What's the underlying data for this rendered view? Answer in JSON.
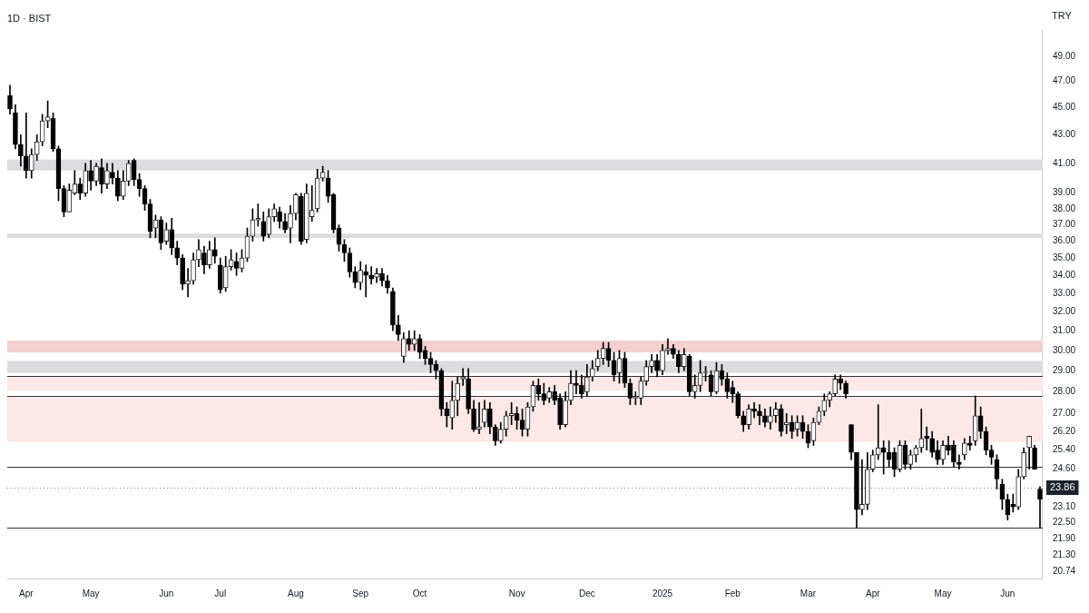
{
  "chart_data": {
    "type": "candlestick",
    "title": "1D · BIST",
    "annotations": [
      "TRY"
    ],
    "categories": [
      null,
      null,
      null,
      "Apr",
      null,
      null,
      null,
      null,
      null,
      null,
      null,
      null,
      null,
      null,
      null,
      "May",
      null,
      null,
      null,
      null,
      null,
      null,
      null,
      null,
      null,
      null,
      null,
      null,
      null,
      "Jun",
      null,
      null,
      null,
      null,
      null,
      null,
      null,
      null,
      null,
      "Jul",
      null,
      null,
      null,
      null,
      null,
      null,
      null,
      null,
      null,
      null,
      null,
      null,
      null,
      "Aug",
      null,
      null,
      null,
      null,
      null,
      null,
      null,
      null,
      null,
      null,
      null,
      "Sep",
      null,
      null,
      null,
      null,
      null,
      null,
      null,
      null,
      null,
      null,
      "Oct",
      null,
      null,
      null,
      null,
      null,
      null,
      null,
      null,
      null,
      null,
      null,
      null,
      null,
      null,
      null,
      null,
      null,
      "Nov",
      null,
      null,
      null,
      null,
      null,
      null,
      null,
      null,
      null,
      null,
      null,
      null,
      "Dec",
      null,
      null,
      null,
      null,
      null,
      null,
      null,
      null,
      null,
      null,
      null,
      null,
      null,
      "2025",
      null,
      null,
      null,
      null,
      null,
      null,
      null,
      null,
      null,
      null,
      null,
      null,
      "Feb",
      null,
      null,
      null,
      null,
      null,
      null,
      null,
      null,
      null,
      null,
      null,
      null,
      null,
      "Mar",
      null,
      null,
      null,
      null,
      null,
      null,
      null,
      null,
      null,
      null,
      null,
      "Apr",
      null,
      null,
      null,
      null,
      null,
      null,
      null,
      null,
      null,
      null,
      null,
      null,
      "May",
      null,
      null,
      null,
      null,
      null,
      null,
      null,
      null,
      null,
      null,
      null,
      "Jun",
      null,
      null,
      null,
      null,
      null,
      null
    ],
    "ohlc": [
      [
        45.9,
        46.7,
        44.5,
        44.9
      ],
      [
        44.6,
        45.2,
        42.0,
        42.3
      ],
      [
        42.3,
        43.0,
        40.8,
        41.5
      ],
      [
        41.5,
        44.6,
        40.0,
        40.5
      ],
      [
        40.5,
        42.0,
        40.0,
        41.6
      ],
      [
        41.6,
        43.0,
        41.2,
        42.5
      ],
      [
        42.5,
        44.5,
        42.2,
        44.0
      ],
      [
        44.0,
        45.5,
        43.5,
        44.3
      ],
      [
        44.2,
        44.6,
        41.8,
        42.0
      ],
      [
        42.0,
        42.2,
        38.5,
        39.3
      ],
      [
        39.3,
        39.5,
        37.5,
        37.8
      ],
      [
        37.8,
        39.6,
        37.8,
        39.2
      ],
      [
        39.0,
        40.5,
        38.9,
        39.6
      ],
      [
        39.6,
        40.0,
        38.6,
        39.0
      ],
      [
        39.0,
        41.0,
        38.8,
        40.5
      ],
      [
        40.5,
        41.2,
        39.2,
        39.8
      ],
      [
        39.8,
        41.0,
        39.5,
        40.8
      ],
      [
        40.7,
        41.3,
        39.0,
        39.6
      ],
      [
        39.6,
        41.0,
        39.3,
        40.5
      ],
      [
        40.4,
        41.0,
        39.6,
        40.0
      ],
      [
        40.0,
        40.5,
        38.5,
        38.8
      ],
      [
        38.8,
        40.5,
        38.6,
        39.8
      ],
      [
        39.8,
        41.2,
        39.5,
        41.0
      ],
      [
        41.2,
        41.3,
        39.5,
        39.9
      ],
      [
        39.9,
        40.3,
        38.8,
        39.3
      ],
      [
        39.3,
        39.5,
        37.9,
        38.3
      ],
      [
        38.3,
        38.6,
        36.2,
        36.6
      ],
      [
        36.8,
        37.6,
        36.2,
        37.3
      ],
      [
        37.3,
        37.5,
        35.5,
        35.9
      ],
      [
        36.0,
        37.1,
        35.8,
        36.7
      ],
      [
        36.7,
        37.4,
        35.2,
        35.6
      ],
      [
        35.6,
        36.0,
        34.6,
        35.0
      ],
      [
        35.0,
        35.2,
        33.2,
        33.5
      ],
      [
        33.5,
        34.4,
        32.8,
        33.7
      ],
      [
        33.7,
        35.3,
        33.5,
        34.9
      ],
      [
        34.9,
        36.1,
        34.5,
        35.5
      ],
      [
        35.3,
        35.7,
        34.1,
        34.6
      ],
      [
        34.6,
        36.0,
        34.4,
        35.5
      ],
      [
        35.5,
        36.2,
        34.7,
        35.1
      ],
      [
        34.6,
        35.0,
        33.0,
        33.2
      ],
      [
        33.3,
        35.1,
        33.1,
        34.5
      ],
      [
        34.5,
        35.5,
        34.3,
        34.9
      ],
      [
        34.8,
        35.3,
        34.0,
        34.4
      ],
      [
        34.4,
        35.5,
        34.2,
        35.0
      ],
      [
        35.0,
        36.8,
        34.8,
        36.3
      ],
      [
        36.3,
        38.0,
        36.0,
        37.3
      ],
      [
        37.3,
        38.3,
        36.9,
        37.4
      ],
      [
        37.2,
        37.8,
        36.0,
        36.3
      ],
      [
        36.4,
        38.0,
        36.2,
        37.5
      ],
      [
        37.5,
        38.3,
        37.2,
        38.0
      ],
      [
        37.8,
        38.1,
        36.8,
        37.2
      ],
      [
        37.2,
        37.7,
        36.5,
        36.7
      ],
      [
        36.8,
        38.2,
        35.9,
        37.7
      ],
      [
        37.7,
        39.0,
        37.3,
        38.9
      ],
      [
        38.8,
        39.0,
        35.8,
        36.0
      ],
      [
        36.1,
        39.6,
        35.9,
        39.0
      ],
      [
        37.5,
        39.5,
        37.2,
        37.9
      ],
      [
        38.0,
        40.6,
        37.8,
        40.0
      ],
      [
        40.0,
        40.8,
        39.8,
        40.4
      ],
      [
        40.0,
        40.5,
        38.4,
        38.8
      ],
      [
        38.9,
        39.0,
        36.5,
        36.7
      ],
      [
        36.8,
        37.0,
        35.4,
        35.8
      ],
      [
        35.8,
        36.1,
        34.8,
        35.3
      ],
      [
        35.3,
        35.6,
        33.9,
        34.2
      ],
      [
        34.2,
        34.5,
        33.3,
        33.6
      ],
      [
        33.6,
        34.8,
        33.2,
        34.3
      ],
      [
        34.2,
        34.6,
        32.8,
        34.0
      ],
      [
        34.0,
        34.5,
        33.5,
        33.8
      ],
      [
        33.9,
        34.4,
        33.6,
        34.1
      ],
      [
        34.1,
        34.4,
        33.4,
        33.7
      ],
      [
        33.7,
        34.0,
        33.0,
        33.3
      ],
      [
        33.1,
        33.3,
        31.0,
        31.3
      ],
      [
        31.3,
        31.8,
        30.5,
        30.8
      ],
      [
        29.7,
        30.9,
        29.4,
        30.6
      ],
      [
        30.6,
        31.0,
        30.0,
        30.3
      ],
      [
        30.3,
        31.0,
        30.0,
        30.6
      ],
      [
        30.6,
        30.8,
        29.6,
        29.9
      ],
      [
        30.0,
        30.2,
        29.3,
        29.6
      ],
      [
        29.6,
        29.9,
        28.9,
        29.3
      ],
      [
        29.3,
        29.5,
        28.6,
        29.0
      ],
      [
        29.0,
        29.1,
        26.9,
        27.2
      ],
      [
        27.2,
        27.5,
        26.4,
        26.9
      ],
      [
        26.8,
        28.5,
        26.3,
        27.6
      ],
      [
        27.6,
        28.7,
        26.9,
        28.4
      ],
      [
        28.6,
        29.1,
        28.3,
        28.7
      ],
      [
        28.6,
        29.1,
        27.0,
        27.2
      ],
      [
        27.2,
        27.6,
        26.2,
        26.3
      ],
      [
        26.3,
        27.5,
        26.1,
        26.4
      ],
      [
        26.6,
        27.6,
        26.4,
        27.2
      ],
      [
        27.2,
        27.5,
        26.1,
        26.4
      ],
      [
        26.4,
        26.5,
        25.6,
        25.8
      ],
      [
        25.8,
        26.6,
        25.7,
        26.3
      ],
      [
        26.3,
        27.1,
        26.0,
        26.9
      ],
      [
        26.9,
        27.5,
        26.5,
        27.0
      ],
      [
        27.0,
        27.3,
        26.3,
        26.7
      ],
      [
        26.7,
        27.2,
        26.0,
        26.3
      ],
      [
        26.3,
        27.5,
        26.0,
        27.3
      ],
      [
        27.3,
        28.5,
        27.1,
        28.3
      ],
      [
        28.3,
        28.6,
        27.6,
        27.9
      ],
      [
        27.9,
        28.4,
        27.4,
        27.6
      ],
      [
        27.7,
        28.2,
        27.5,
        28.0
      ],
      [
        28.0,
        28.3,
        27.4,
        27.6
      ],
      [
        27.7,
        27.9,
        26.3,
        26.5
      ],
      [
        26.5,
        28.0,
        26.4,
        27.6
      ],
      [
        27.6,
        29.0,
        27.4,
        28.4
      ],
      [
        28.4,
        29.0,
        27.9,
        28.3
      ],
      [
        28.3,
        28.8,
        27.7,
        27.9
      ],
      [
        28.0,
        29.3,
        27.8,
        28.7
      ],
      [
        28.7,
        29.5,
        28.5,
        29.1
      ],
      [
        29.2,
        30.0,
        29.0,
        29.6
      ],
      [
        29.6,
        30.4,
        29.3,
        30.1
      ],
      [
        30.1,
        30.4,
        29.2,
        29.5
      ],
      [
        29.5,
        29.9,
        28.5,
        28.8
      ],
      [
        28.9,
        30.0,
        28.4,
        29.6
      ],
      [
        29.6,
        29.9,
        28.2,
        28.4
      ],
      [
        28.4,
        28.6,
        27.4,
        27.7
      ],
      [
        27.7,
        28.0,
        27.4,
        27.7
      ],
      [
        27.7,
        28.7,
        27.4,
        28.5
      ],
      [
        28.5,
        29.5,
        28.3,
        29.2
      ],
      [
        29.2,
        29.8,
        28.9,
        29.5
      ],
      [
        29.5,
        29.8,
        28.7,
        29.0
      ],
      [
        29.0,
        30.3,
        28.8,
        30.0
      ],
      [
        30.0,
        30.6,
        29.8,
        30.1
      ],
      [
        30.1,
        30.3,
        29.6,
        29.8
      ],
      [
        29.8,
        30.0,
        28.9,
        29.2
      ],
      [
        29.2,
        30.1,
        29.0,
        29.8
      ],
      [
        29.7,
        29.8,
        27.8,
        28.0
      ],
      [
        28.0,
        28.8,
        27.7,
        28.3
      ],
      [
        28.3,
        29.5,
        28.0,
        28.9
      ],
      [
        28.9,
        29.2,
        28.5,
        28.9
      ],
      [
        28.8,
        29.0,
        27.8,
        28.0
      ],
      [
        28.0,
        29.4,
        27.9,
        29.0
      ],
      [
        29.0,
        29.3,
        28.3,
        28.6
      ],
      [
        28.6,
        28.9,
        27.7,
        28.0
      ],
      [
        28.2,
        28.5,
        27.5,
        27.9
      ],
      [
        27.9,
        28.0,
        26.8,
        26.9
      ],
      [
        26.9,
        27.1,
        26.2,
        26.5
      ],
      [
        26.5,
        27.4,
        26.3,
        27.2
      ],
      [
        27.2,
        27.5,
        26.8,
        27.1
      ],
      [
        27.1,
        27.4,
        26.5,
        26.9
      ],
      [
        26.9,
        27.2,
        26.4,
        26.6
      ],
      [
        26.6,
        27.3,
        26.3,
        26.9
      ],
      [
        26.9,
        27.5,
        26.6,
        27.2
      ],
      [
        27.2,
        27.4,
        26.0,
        26.2
      ],
      [
        26.5,
        27.0,
        26.1,
        26.6
      ],
      [
        26.6,
        26.9,
        25.9,
        26.2
      ],
      [
        26.3,
        26.9,
        26.0,
        26.6
      ],
      [
        26.6,
        26.9,
        25.9,
        26.2
      ],
      [
        26.2,
        26.5,
        25.5,
        25.7
      ],
      [
        25.8,
        26.8,
        25.6,
        26.6
      ],
      [
        26.6,
        27.3,
        26.5,
        27.1
      ],
      [
        27.1,
        27.9,
        26.9,
        27.6
      ],
      [
        27.6,
        28.0,
        27.3,
        27.9
      ],
      [
        27.9,
        28.8,
        27.8,
        28.6
      ],
      [
        28.6,
        28.8,
        28.1,
        28.4
      ],
      [
        28.4,
        28.5,
        27.7,
        27.9
      ],
      [
        26.5,
        26.5,
        25.0,
        25.3
      ],
      [
        25.3,
        25.3,
        22.3,
        23.0
      ],
      [
        23.0,
        25.0,
        22.8,
        23.2
      ],
      [
        23.2,
        25.3,
        23.0,
        24.6
      ],
      [
        24.6,
        25.4,
        24.5,
        25.2
      ],
      [
        25.2,
        27.4,
        25.0,
        25.5
      ],
      [
        25.5,
        25.8,
        24.4,
        25.3
      ],
      [
        25.3,
        25.8,
        24.7,
        25.0
      ],
      [
        25.3,
        25.5,
        24.3,
        24.6
      ],
      [
        24.6,
        25.8,
        24.5,
        25.6
      ],
      [
        25.6,
        25.8,
        24.6,
        24.8
      ],
      [
        24.8,
        25.4,
        24.6,
        25.2
      ],
      [
        25.2,
        25.6,
        24.9,
        25.5
      ],
      [
        25.5,
        27.2,
        25.3,
        25.9
      ],
      [
        26.0,
        26.4,
        25.4,
        25.9
      ],
      [
        25.9,
        26.2,
        25.1,
        25.3
      ],
      [
        25.4,
        25.8,
        24.8,
        25.0
      ],
      [
        25.0,
        25.8,
        24.8,
        25.6
      ],
      [
        25.6,
        26.0,
        25.2,
        25.4
      ],
      [
        25.6,
        25.8,
        24.7,
        24.9
      ],
      [
        24.9,
        25.2,
        24.6,
        24.8
      ],
      [
        25.2,
        25.9,
        25.0,
        25.7
      ],
      [
        25.7,
        26.0,
        25.4,
        25.6
      ],
      [
        25.8,
        27.8,
        25.6,
        26.9
      ],
      [
        26.9,
        27.3,
        25.9,
        26.2
      ],
      [
        26.2,
        26.4,
        25.2,
        25.4
      ],
      [
        25.4,
        25.6,
        24.8,
        25.1
      ],
      [
        25.0,
        25.2,
        23.8,
        24.2
      ],
      [
        24.0,
        24.2,
        23.0,
        23.4
      ],
      [
        23.4,
        23.6,
        22.6,
        22.8
      ],
      [
        23.2,
        23.6,
        22.9,
        23.1
      ],
      [
        23.1,
        24.6,
        23.0,
        24.3
      ],
      [
        24.3,
        25.5,
        24.2,
        25.3
      ],
      [
        25.5,
        26.0,
        24.6,
        26.0
      ],
      [
        25.5,
        25.6,
        24.6,
        24.6
      ],
      [
        23.8,
        23.9,
        22.3,
        23.4
      ]
    ],
    "ylim": [
      20.5,
      51.2
    ],
    "yticks": [
      {
        "value": 49,
        "label": "49.00"
      },
      {
        "value": 47,
        "label": "47.00"
      },
      {
        "value": 45,
        "label": "45.00"
      },
      {
        "value": 43,
        "label": "43.00"
      },
      {
        "value": 41,
        "label": "41.00"
      },
      {
        "value": 39,
        "label": "39.00"
      },
      {
        "value": 38,
        "label": "38.00"
      },
      {
        "value": 37,
        "label": "37.00"
      },
      {
        "value": 36,
        "label": "36.00"
      },
      {
        "value": 35,
        "label": "35.00"
      },
      {
        "value": 34,
        "label": "34.00"
      },
      {
        "value": 33,
        "label": "33.00"
      },
      {
        "value": 32,
        "label": "32.00"
      },
      {
        "value": 31,
        "label": "31.00"
      },
      {
        "value": 30,
        "label": "30.00"
      },
      {
        "value": 29,
        "label": "29.00"
      },
      {
        "value": 28,
        "label": "28.00"
      },
      {
        "value": 27,
        "label": "27.00"
      },
      {
        "value": 26.2,
        "label": "26.20"
      },
      {
        "value": 25.4,
        "label": "25.40"
      },
      {
        "value": 24.6,
        "label": "24.60"
      },
      {
        "value": 23.1,
        "label": "23.10"
      },
      {
        "value": 22.5,
        "label": "22.50"
      },
      {
        "value": 21.9,
        "label": "21.90"
      },
      {
        "value": 21.3,
        "label": "21.30"
      },
      {
        "value": 20.74,
        "label": "20.74"
      }
    ],
    "log": true,
    "bands": [
      {
        "axis": "y",
        "from": 40.5,
        "to": 41.25,
        "color": "#dcdcdf"
      },
      {
        "axis": "y",
        "from": 36.2,
        "to": 36.45,
        "color": "#dcdcdf"
      },
      {
        "axis": "y",
        "from": 28.9,
        "to": 29.47,
        "color": "#dcdcdf"
      },
      {
        "axis": "y",
        "from": 29.9,
        "to": 30.5,
        "color": "#f2d0d2"
      },
      {
        "axis": "y",
        "from": 28.05,
        "to": 28.7,
        "color": "#fce8e8"
      },
      {
        "axis": "y",
        "from": 25.75,
        "to": 27.75,
        "color": "#fce8e8"
      }
    ],
    "ref_lines": [
      {
        "axis": "y",
        "value": 28.75,
        "color": "#333333",
        "line_style": "solid"
      },
      {
        "axis": "y",
        "value": 27.8,
        "color": "#333333",
        "line_style": "solid"
      },
      {
        "axis": "y",
        "value": 24.7,
        "color": "#333333",
        "line_style": "solid"
      },
      {
        "axis": "y",
        "value": 22.3,
        "color": "#333333",
        "line_style": "solid"
      },
      {
        "axis": "y",
        "value": 23.86,
        "label": "23.86",
        "color": "#888888",
        "line_style": "dotted"
      }
    ]
  }
}
